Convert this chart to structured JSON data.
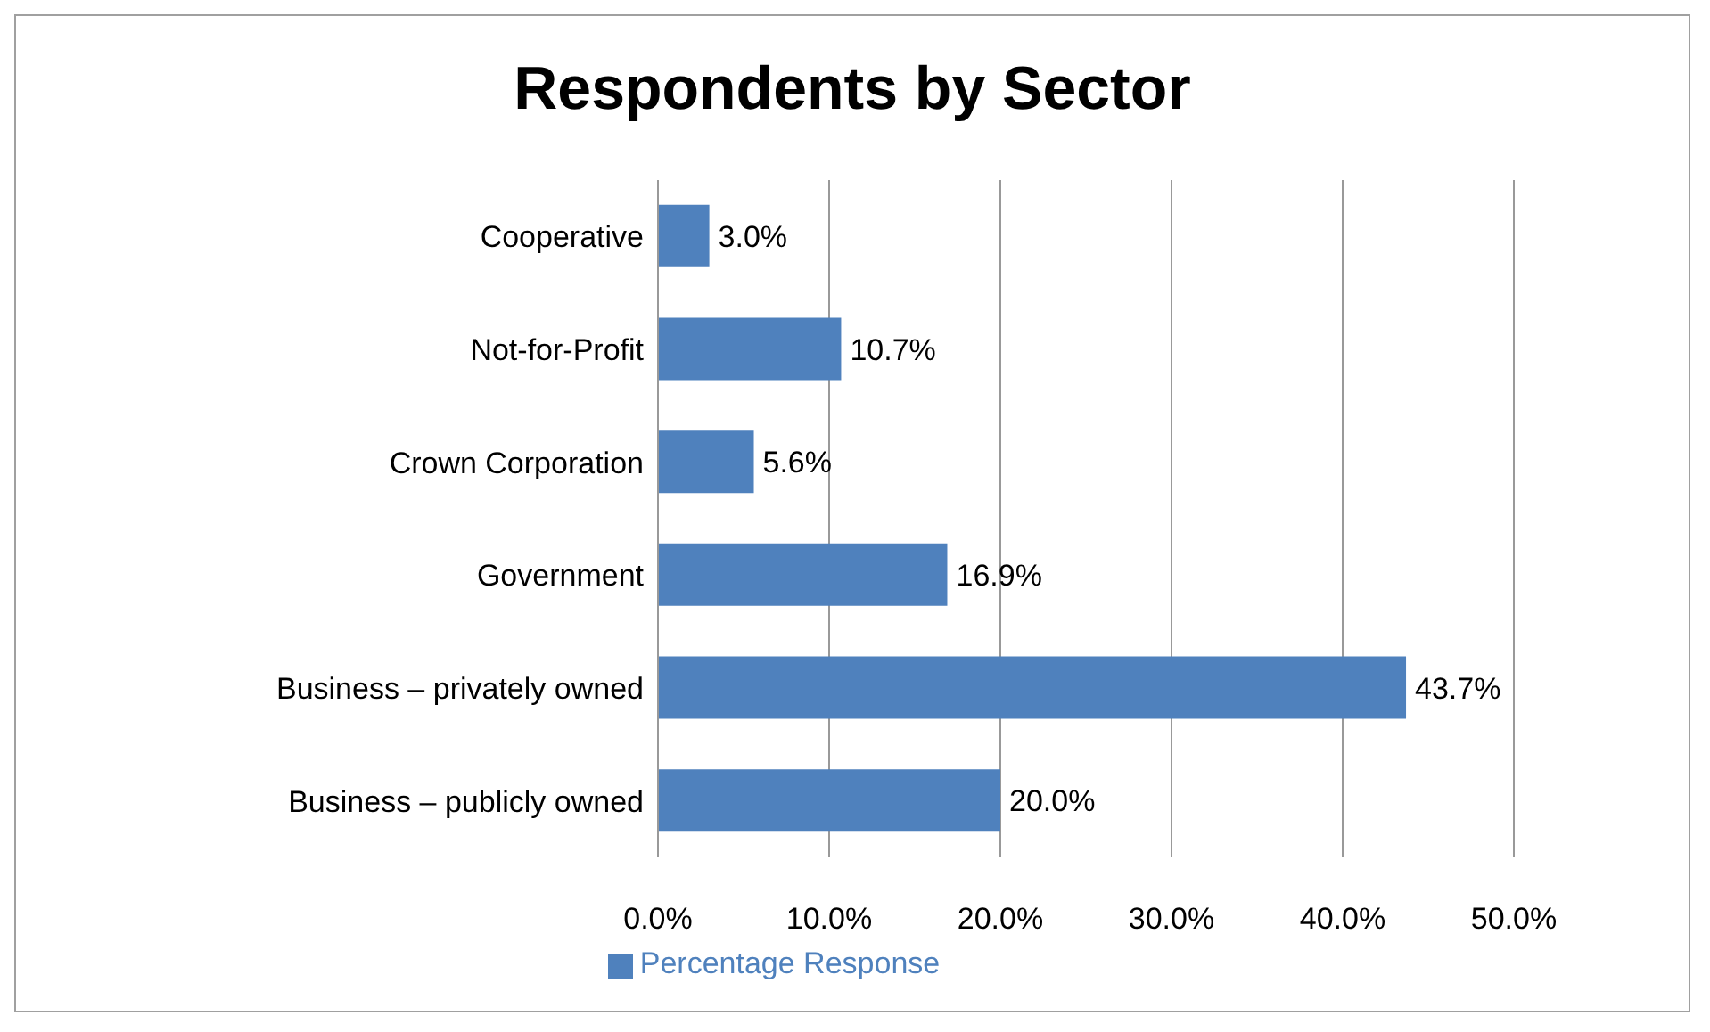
{
  "chart_data": {
    "type": "bar",
    "orientation": "horizontal",
    "title": "Respondents by Sector",
    "categories": [
      "Cooperative",
      "Not-for-Profit",
      "Crown Corporation",
      "Government",
      "Business – privately owned",
      "Business – publicly owned"
    ],
    "series": [
      {
        "name": "Percentage Response",
        "color": "#4f81bd",
        "values": [
          3.0,
          10.7,
          5.6,
          16.9,
          43.7,
          20.0
        ]
      }
    ],
    "value_labels": [
      "3.0%",
      "10.7%",
      "5.6%",
      "16.9%",
      "43.7%",
      "20.0%"
    ],
    "xlim": [
      0,
      50
    ],
    "xticks": [
      {
        "value": 0,
        "label": "0.0%"
      },
      {
        "value": 10,
        "label": "10.0%"
      },
      {
        "value": 20,
        "label": "20.0%"
      },
      {
        "value": 30,
        "label": "30.0%"
      },
      {
        "value": 40,
        "label": "40.0%"
      },
      {
        "value": 50,
        "label": "50.0%"
      }
    ],
    "grid": "x",
    "legend": "bottom"
  }
}
